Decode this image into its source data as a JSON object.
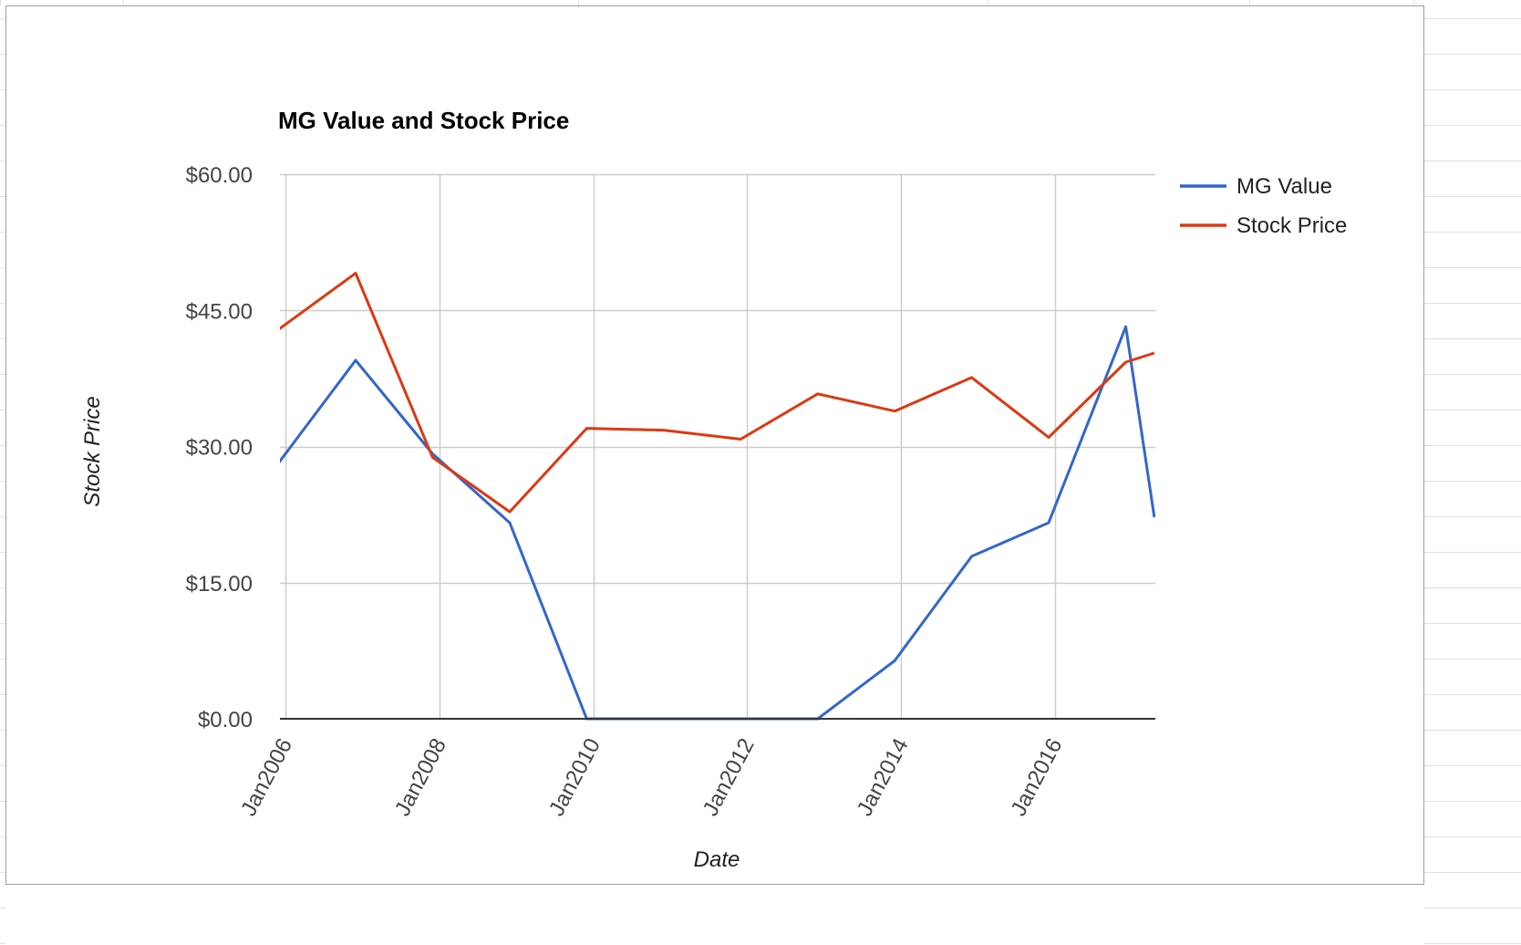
{
  "chart_data": {
    "type": "line",
    "title": "MG Value and Stock Price",
    "xlabel": "Date",
    "ylabel": "Stock Price",
    "ylim": [
      0,
      60
    ],
    "xlim": [
      "2006-01-01",
      "2017-04-15"
    ],
    "yticks": [
      "$0.00",
      "$15.00",
      "$30.00",
      "$45.00",
      "$60.00"
    ],
    "ytick_values": [
      0,
      15,
      30,
      45,
      60
    ],
    "xticks": [
      "Jan2006",
      "Jan2008",
      "Jan2010",
      "Jan2012",
      "Jan2014",
      "Jan2016"
    ],
    "xtick_dates": [
      "2006-01-01",
      "2008-01-01",
      "2010-01-01",
      "2012-01-01",
      "2014-01-01",
      "2016-01-01"
    ],
    "grid": true,
    "legend_position": "right-top",
    "series": [
      {
        "name": "MG Value",
        "color": "#3366cc",
        "points": [
          {
            "date": "2005-12-01",
            "value": 28.2
          },
          {
            "date": "2006-12-01",
            "value": 39.5
          },
          {
            "date": "2007-12-01",
            "value": 29.2
          },
          {
            "date": "2008-12-01",
            "value": 21.6
          },
          {
            "date": "2009-12-01",
            "value": 0
          },
          {
            "date": "2010-12-01",
            "value": 0
          },
          {
            "date": "2011-12-01",
            "value": 0
          },
          {
            "date": "2012-12-01",
            "value": 0
          },
          {
            "date": "2013-12-01",
            "value": 6.4
          },
          {
            "date": "2014-12-01",
            "value": 17.9
          },
          {
            "date": "2015-12-01",
            "value": 21.6
          },
          {
            "date": "2016-12-01",
            "value": 43.2
          },
          {
            "date": "2017-04-15",
            "value": 22.2
          }
        ]
      },
      {
        "name": "Stock Price",
        "color": "#dc3912",
        "points": [
          {
            "date": "2005-12-01",
            "value": 42.9
          },
          {
            "date": "2006-12-01",
            "value": 49.1
          },
          {
            "date": "2007-12-01",
            "value": 28.8
          },
          {
            "date": "2008-12-01",
            "value": 22.8
          },
          {
            "date": "2009-12-01",
            "value": 32.0
          },
          {
            "date": "2010-12-01",
            "value": 31.8
          },
          {
            "date": "2011-12-01",
            "value": 30.8
          },
          {
            "date": "2012-12-01",
            "value": 35.8
          },
          {
            "date": "2013-12-01",
            "value": 33.9
          },
          {
            "date": "2014-12-01",
            "value": 37.6
          },
          {
            "date": "2015-12-01",
            "value": 31.0
          },
          {
            "date": "2016-12-01",
            "value": 39.3
          },
          {
            "date": "2017-04-15",
            "value": 40.3
          }
        ]
      }
    ]
  }
}
